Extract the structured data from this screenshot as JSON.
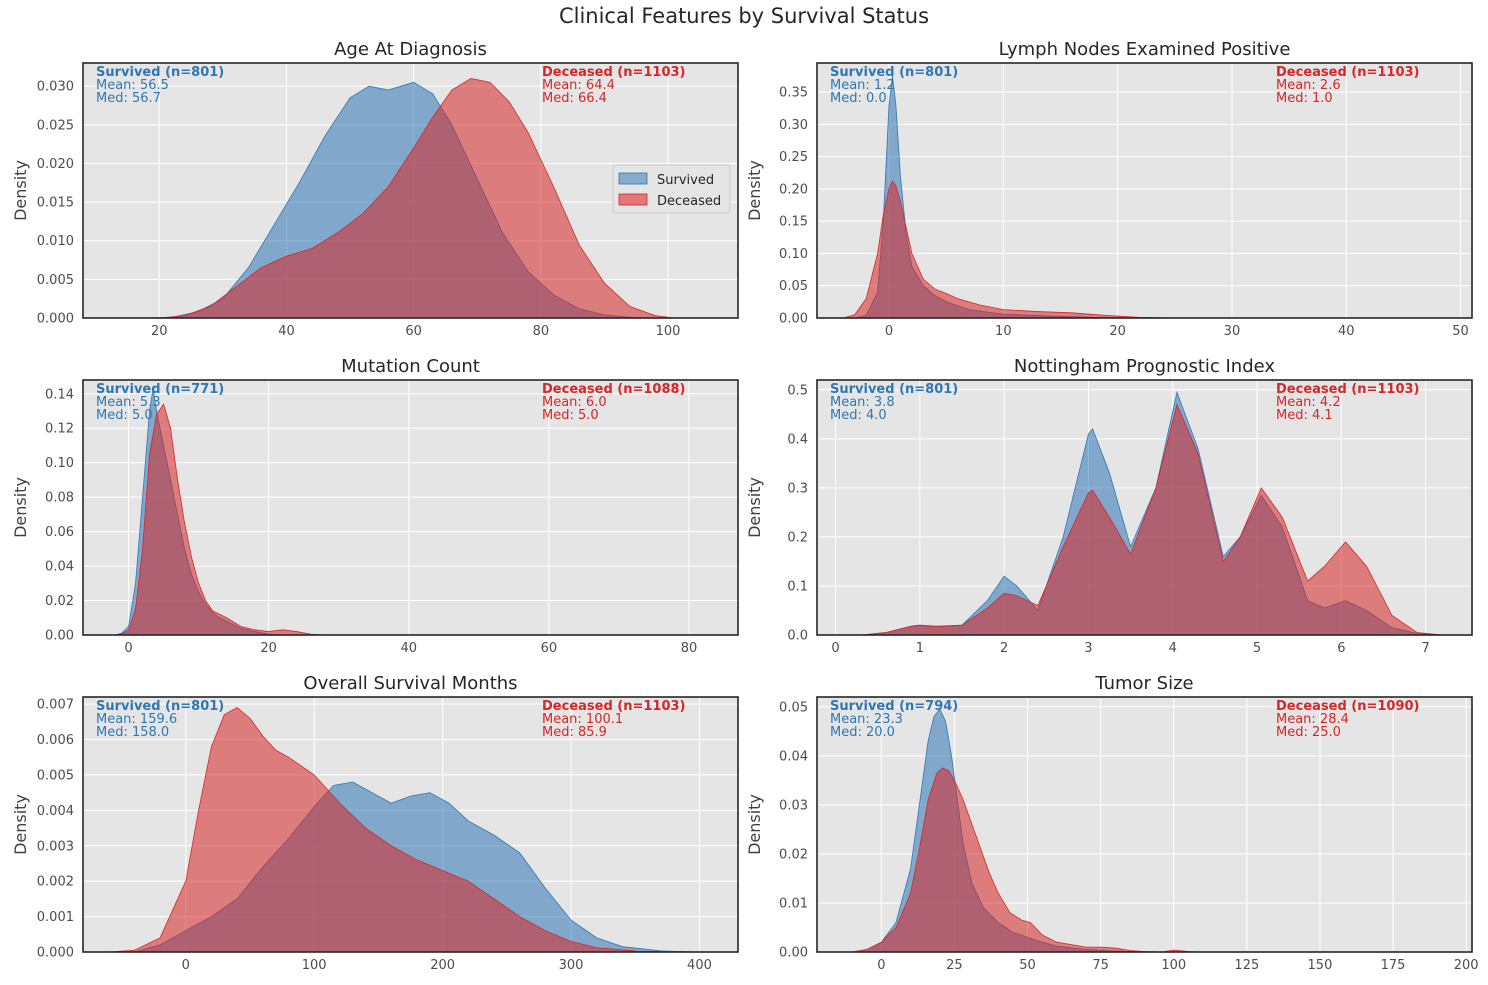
{
  "figure": {
    "title": "Clinical Features by Survival Status"
  },
  "colors": {
    "survived": "#2f77b4",
    "survived_fill": "#86abcc",
    "deceased": "#d62728",
    "deceased_fill": "#e17779",
    "overlap_fill": "#ac5e6f",
    "panel_bg": "#e5e5e5",
    "grid": "#ffffff",
    "axis": "#262626"
  },
  "legend": {
    "location": "center-right of first panel",
    "items": [
      "Survived",
      "Deceased"
    ]
  },
  "chart_data": [
    {
      "type": "area",
      "title": "Age At Diagnosis",
      "xlabel": "",
      "ylabel": "Density",
      "xlim": [
        8,
        111
      ],
      "ylim": [
        0,
        0.033
      ],
      "xticks": [
        20,
        40,
        60,
        80,
        100
      ],
      "yticks": [
        0.0,
        0.005,
        0.01,
        0.015,
        0.02,
        0.025,
        0.03
      ],
      "ytick_labels": [
        "0.000",
        "0.005",
        "0.010",
        "0.015",
        "0.020",
        "0.025",
        "0.030"
      ],
      "survived": {
        "label": "Survived (n=801)",
        "mean": "Mean: 56.5",
        "median": "Med: 56.7",
        "x": [
          18,
          22,
          26,
          30,
          34,
          38,
          42,
          46,
          50,
          53,
          56,
          58,
          60,
          63,
          66,
          70,
          74,
          78,
          82,
          86,
          90,
          94,
          97
        ],
        "y": [
          0,
          0.0001,
          0.0008,
          0.0025,
          0.0065,
          0.012,
          0.0175,
          0.0235,
          0.0285,
          0.03,
          0.0295,
          0.03,
          0.0305,
          0.029,
          0.025,
          0.018,
          0.011,
          0.006,
          0.003,
          0.0012,
          0.0004,
          0.0001,
          0
        ]
      },
      "deceased": {
        "label": "Deceased (n=1103)",
        "mean": "Mean: 64.4",
        "median": "Med: 66.4",
        "x": [
          20,
          24,
          28,
          32,
          36,
          40,
          44,
          48,
          52,
          56,
          60,
          63,
          66,
          69,
          72,
          75,
          78,
          82,
          86,
          90,
          94,
          98,
          101
        ],
        "y": [
          0,
          0.0003,
          0.0015,
          0.004,
          0.0065,
          0.008,
          0.009,
          0.011,
          0.0135,
          0.017,
          0.022,
          0.026,
          0.0295,
          0.031,
          0.0305,
          0.028,
          0.024,
          0.017,
          0.0095,
          0.0045,
          0.0015,
          0.0003,
          0
        ]
      }
    },
    {
      "type": "area",
      "title": "Lymph Nodes Examined Positive",
      "xlabel": "",
      "ylabel": "Density",
      "xlim": [
        -6.3,
        51
      ],
      "ylim": [
        0,
        0.395
      ],
      "xticks": [
        0,
        10,
        20,
        30,
        40,
        50
      ],
      "yticks": [
        0.0,
        0.05,
        0.1,
        0.15,
        0.2,
        0.25,
        0.3,
        0.35
      ],
      "ytick_labels": [
        "0.00",
        "0.05",
        "0.10",
        "0.15",
        "0.20",
        "0.25",
        "0.30",
        "0.35"
      ],
      "survived": {
        "label": "Survived (n=801)",
        "mean": "Mean: 1.2",
        "median": "Med: 0.0",
        "x": [
          -3,
          -2,
          -1,
          -0.5,
          0,
          0.3,
          0.6,
          1,
          1.5,
          2,
          3,
          4,
          5,
          7,
          10,
          14,
          18,
          22
        ],
        "y": [
          0,
          0.004,
          0.04,
          0.15,
          0.33,
          0.375,
          0.33,
          0.22,
          0.13,
          0.08,
          0.05,
          0.035,
          0.025,
          0.013,
          0.006,
          0.003,
          0.001,
          0
        ]
      },
      "deceased": {
        "label": "Deceased (n=1103)",
        "mean": "Mean: 2.6",
        "median": "Med: 1.0",
        "x": [
          -4,
          -3,
          -2,
          -1,
          -0.5,
          0,
          0.3,
          0.6,
          1,
          1.5,
          2,
          3,
          4,
          5,
          6,
          8,
          10,
          13,
          16,
          19,
          22,
          25
        ],
        "y": [
          0,
          0.005,
          0.03,
          0.1,
          0.16,
          0.2,
          0.212,
          0.205,
          0.18,
          0.14,
          0.1,
          0.06,
          0.045,
          0.038,
          0.03,
          0.02,
          0.013,
          0.01,
          0.008,
          0.004,
          0.001,
          0
        ]
      }
    },
    {
      "type": "area",
      "title": "Mutation Count",
      "xlabel": "",
      "ylabel": "Density",
      "xlim": [
        -6.5,
        87
      ],
      "ylim": [
        0,
        0.148
      ],
      "xticks": [
        0,
        20,
        40,
        60,
        80
      ],
      "yticks": [
        0.0,
        0.02,
        0.04,
        0.06,
        0.08,
        0.1,
        0.12,
        0.14
      ],
      "ytick_labels": [
        "0.00",
        "0.02",
        "0.04",
        "0.06",
        "0.08",
        "0.10",
        "0.12",
        "0.14"
      ],
      "survived": {
        "label": "Survived (n=771)",
        "mean": "Mean: 5.3",
        "median": "Med: 5.0",
        "x": [
          -2,
          -1,
          0,
          1,
          2,
          3,
          3.5,
          4,
          5,
          6,
          7,
          8,
          9,
          10,
          11,
          12,
          13,
          14,
          16,
          18,
          20,
          22
        ],
        "y": [
          0,
          0.001,
          0.005,
          0.03,
          0.08,
          0.13,
          0.143,
          0.13,
          0.11,
          0.09,
          0.07,
          0.05,
          0.035,
          0.025,
          0.018,
          0.013,
          0.01,
          0.008,
          0.004,
          0.002,
          0.0005,
          0
        ]
      },
      "deceased": {
        "label": "Deceased (n=1088)",
        "mean": "Mean: 6.0",
        "median": "Med: 5.0",
        "x": [
          -2,
          -1,
          0,
          1,
          2,
          3,
          4,
          5,
          6,
          7,
          8,
          9,
          10,
          11,
          12,
          14,
          16,
          18,
          20,
          22,
          24,
          26,
          28
        ],
        "y": [
          0,
          0.0005,
          0.003,
          0.015,
          0.05,
          0.105,
          0.128,
          0.134,
          0.12,
          0.09,
          0.065,
          0.045,
          0.03,
          0.02,
          0.014,
          0.01,
          0.005,
          0.003,
          0.002,
          0.003,
          0.002,
          0.0005,
          0
        ]
      }
    },
    {
      "type": "area",
      "title": "Nottingham Prognostic Index",
      "xlabel": "",
      "ylabel": "Density",
      "xlim": [
        -0.22,
        7.55
      ],
      "ylim": [
        0,
        0.52
      ],
      "xticks": [
        0,
        1,
        2,
        3,
        4,
        5,
        6,
        7
      ],
      "yticks": [
        0.0,
        0.1,
        0.2,
        0.3,
        0.4,
        0.5
      ],
      "ytick_labels": [
        "0.0",
        "0.1",
        "0.2",
        "0.3",
        "0.4",
        "0.5"
      ],
      "survived": {
        "label": "Survived (n=801)",
        "mean": "Mean: 3.8",
        "median": "Med: 4.0",
        "x": [
          0.3,
          0.6,
          0.9,
          1.0,
          1.2,
          1.5,
          1.8,
          2.0,
          2.15,
          2.4,
          2.7,
          3.0,
          3.05,
          3.25,
          3.5,
          3.8,
          4.05,
          4.3,
          4.6,
          4.8,
          5.05,
          5.3,
          5.6,
          5.8,
          6.05,
          6.3,
          6.6,
          6.9,
          7.2
        ],
        "y": [
          0,
          0.005,
          0.018,
          0.02,
          0.018,
          0.02,
          0.07,
          0.12,
          0.1,
          0.05,
          0.2,
          0.41,
          0.42,
          0.33,
          0.18,
          0.3,
          0.495,
          0.38,
          0.16,
          0.2,
          0.285,
          0.22,
          0.07,
          0.055,
          0.07,
          0.05,
          0.015,
          0.003,
          0
        ]
      },
      "deceased": {
        "label": "Deceased (n=1103)",
        "mean": "Mean: 4.2",
        "median": "Med: 4.1",
        "x": [
          0.3,
          0.6,
          0.9,
          1.0,
          1.2,
          1.5,
          1.8,
          2.0,
          2.15,
          2.4,
          2.7,
          3.0,
          3.05,
          3.25,
          3.5,
          3.8,
          4.05,
          4.3,
          4.6,
          4.8,
          5.05,
          5.3,
          5.6,
          5.8,
          6.05,
          6.3,
          6.6,
          6.9,
          7.2
        ],
        "y": [
          0,
          0.005,
          0.018,
          0.02,
          0.017,
          0.02,
          0.055,
          0.085,
          0.08,
          0.06,
          0.18,
          0.29,
          0.295,
          0.24,
          0.165,
          0.3,
          0.47,
          0.37,
          0.15,
          0.2,
          0.3,
          0.24,
          0.11,
          0.14,
          0.19,
          0.14,
          0.04,
          0.005,
          0
        ]
      }
    },
    {
      "type": "area",
      "title": "Overall Survival Months",
      "xlabel": "",
      "ylabel": "Density",
      "xlim": [
        -80,
        430
      ],
      "ylim": [
        0,
        0.0072
      ],
      "xticks": [
        0,
        100,
        200,
        300,
        400
      ],
      "yticks": [
        0.0,
        0.001,
        0.002,
        0.003,
        0.004,
        0.005,
        0.006,
        0.007
      ],
      "ytick_labels": [
        "0.000",
        "0.001",
        "0.002",
        "0.003",
        "0.004",
        "0.005",
        "0.006",
        "0.007"
      ],
      "survived": {
        "label": "Survived (n=801)",
        "mean": "Mean: 159.6",
        "median": "Med: 158.0",
        "x": [
          -40,
          -20,
          0,
          20,
          40,
          60,
          80,
          100,
          115,
          130,
          145,
          160,
          175,
          190,
          205,
          220,
          240,
          260,
          280,
          300,
          320,
          340,
          370,
          400
        ],
        "y": [
          0,
          0.0002,
          0.0006,
          0.001,
          0.0015,
          0.0024,
          0.0032,
          0.0041,
          0.0047,
          0.0048,
          0.0045,
          0.0042,
          0.0044,
          0.0045,
          0.0042,
          0.0037,
          0.0033,
          0.0028,
          0.0018,
          0.0009,
          0.0004,
          0.00015,
          3e-05,
          0
        ]
      },
      "deceased": {
        "label": "Deceased (n=1103)",
        "mean": "Mean: 100.1",
        "median": "Med: 85.9",
        "x": [
          -60,
          -40,
          -20,
          0,
          10,
          20,
          30,
          40,
          50,
          60,
          70,
          80,
          100,
          120,
          140,
          160,
          180,
          200,
          220,
          240,
          260,
          280,
          300,
          320,
          350,
          380
        ],
        "y": [
          0,
          5e-05,
          0.0004,
          0.002,
          0.004,
          0.0058,
          0.0067,
          0.0069,
          0.0066,
          0.0061,
          0.0057,
          0.0055,
          0.005,
          0.0042,
          0.0035,
          0.003,
          0.0026,
          0.0023,
          0.002,
          0.0015,
          0.001,
          0.0006,
          0.0003,
          0.00012,
          3e-05,
          0
        ]
      }
    },
    {
      "type": "area",
      "title": "Tumor Size",
      "xlabel": "",
      "ylabel": "Density",
      "xlim": [
        -22,
        202
      ],
      "ylim": [
        0,
        0.052
      ],
      "xticks": [
        0,
        25,
        50,
        75,
        100,
        125,
        150,
        175,
        200
      ],
      "yticks": [
        0.0,
        0.01,
        0.02,
        0.03,
        0.04,
        0.05
      ],
      "ytick_labels": [
        "0.00",
        "0.01",
        "0.02",
        "0.03",
        "0.04",
        "0.05"
      ],
      "survived": {
        "label": "Survived (n=794)",
        "mean": "Mean: 23.3",
        "median": "Med: 20.0",
        "x": [
          -10,
          -5,
          0,
          5,
          10,
          13,
          16,
          18,
          20,
          22,
          24,
          26,
          28,
          31,
          35,
          40,
          45,
          50,
          55,
          60,
          70,
          80,
          90
        ],
        "y": [
          0,
          0.0005,
          0.002,
          0.006,
          0.017,
          0.03,
          0.043,
          0.048,
          0.0495,
          0.047,
          0.04,
          0.031,
          0.022,
          0.014,
          0.009,
          0.006,
          0.004,
          0.003,
          0.002,
          0.0012,
          0.0005,
          0.0002,
          0
        ]
      },
      "deceased": {
        "label": "Deceased (n=1090)",
        "mean": "Mean: 28.4",
        "median": "Med: 25.0",
        "x": [
          -10,
          -5,
          0,
          5,
          10,
          13,
          16,
          19,
          21,
          23,
          25,
          28,
          31,
          34,
          37,
          40,
          44,
          48,
          51,
          55,
          60,
          65,
          70,
          75,
          80,
          85,
          90,
          96,
          100,
          105,
          110
        ],
        "y": [
          0,
          0.0005,
          0.002,
          0.005,
          0.012,
          0.021,
          0.031,
          0.0365,
          0.0375,
          0.037,
          0.035,
          0.031,
          0.026,
          0.021,
          0.016,
          0.012,
          0.008,
          0.0065,
          0.006,
          0.0035,
          0.002,
          0.0015,
          0.001,
          0.001,
          0.0008,
          0.0003,
          0.0001,
          0,
          0.0004,
          0.0001,
          0
        ]
      }
    }
  ]
}
